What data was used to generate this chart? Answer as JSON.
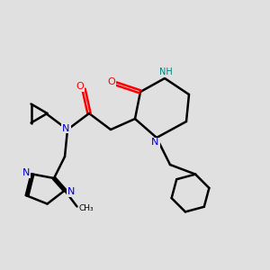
{
  "bg_color": "#e0e0e0",
  "bond_color": "#000000",
  "N_color": "#0000cc",
  "O_color": "#ff0000",
  "H_color": "#008080",
  "line_width": 1.8,
  "figsize": [
    3.0,
    3.0
  ],
  "dpi": 100,
  "xlim": [
    0,
    10
  ],
  "ylim": [
    0,
    10
  ]
}
